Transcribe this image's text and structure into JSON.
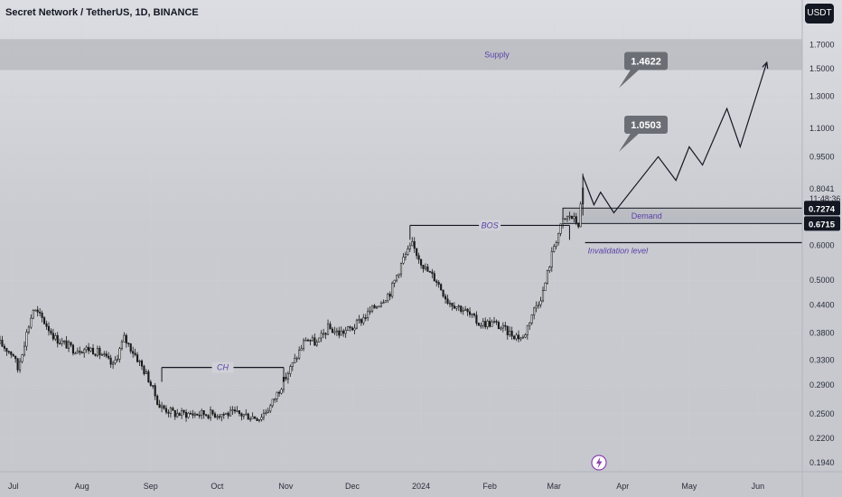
{
  "header": {
    "title": "Secret Network / TetherUS, 1D, BINANCE",
    "currency_button": "USDT"
  },
  "colors": {
    "candle": "#1a1a1a",
    "zone_fill": "#a9abb1",
    "annotation_text": "#5b3fa8",
    "callout_bg": "#6b6e74",
    "price_label_bg": "#131722",
    "axis_text": "#2a2e39"
  },
  "chart_data": {
    "type": "candlestick",
    "symbol": "Secret Network / TetherUS",
    "interval": "1D",
    "exchange": "BINANCE",
    "y_scale": "log",
    "ylim": [
      0.185,
      1.88
    ],
    "xlim": [
      "2023-06-25",
      "2024-06-21"
    ],
    "y_ticks": [
      "1.7000",
      "1.5000",
      "1.3000",
      "1.1000",
      "0.9500",
      "0.8041",
      "0.7274",
      "0.6715",
      "0.6000",
      "0.5000",
      "0.4400",
      "0.3800",
      "0.3300",
      "0.2900",
      "0.2500",
      "0.2200",
      "0.1940"
    ],
    "x_ticks": [
      {
        "label": "Jul",
        "date": "2023-07-01"
      },
      {
        "label": "Aug",
        "date": "2023-08-01"
      },
      {
        "label": "Sep",
        "date": "2023-09-01"
      },
      {
        "label": "Oct",
        "date": "2023-10-01"
      },
      {
        "label": "Nov",
        "date": "2023-11-01"
      },
      {
        "label": "Dec",
        "date": "2023-12-01"
      },
      {
        "label": "2024",
        "date": "2024-01-01"
      },
      {
        "label": "Feb",
        "date": "2024-02-01"
      },
      {
        "label": "Mar",
        "date": "2024-03-01"
      },
      {
        "label": "Apr",
        "date": "2024-04-01"
      },
      {
        "label": "May",
        "date": "2024-05-01"
      },
      {
        "label": "Jun",
        "date": "2024-06-01"
      }
    ],
    "last_price": "0.8041",
    "countdown": "11:48:36",
    "price_path": [
      [
        "2023-06-25",
        0.36
      ],
      [
        "2023-07-01",
        0.34
      ],
      [
        "2023-07-03",
        0.315
      ],
      [
        "2023-07-07",
        0.38
      ],
      [
        "2023-07-10",
        0.43
      ],
      [
        "2023-07-14",
        0.41
      ],
      [
        "2023-07-20",
        0.37
      ],
      [
        "2023-07-28",
        0.35
      ],
      [
        "2023-08-05",
        0.35
      ],
      [
        "2023-08-10",
        0.34
      ],
      [
        "2023-08-15",
        0.32
      ],
      [
        "2023-08-20",
        0.37
      ],
      [
        "2023-08-25",
        0.34
      ],
      [
        "2023-08-31",
        0.3
      ],
      [
        "2023-09-05",
        0.26
      ],
      [
        "2023-09-12",
        0.25
      ],
      [
        "2023-09-22",
        0.25
      ],
      [
        "2023-10-01",
        0.25
      ],
      [
        "2023-10-10",
        0.25
      ],
      [
        "2023-10-20",
        0.245
      ],
      [
        "2023-10-25",
        0.26
      ],
      [
        "2023-10-30",
        0.29
      ],
      [
        "2023-11-05",
        0.33
      ],
      [
        "2023-11-10",
        0.37
      ],
      [
        "2023-11-15",
        0.36
      ],
      [
        "2023-11-20",
        0.39
      ],
      [
        "2023-11-25",
        0.38
      ],
      [
        "2023-12-01",
        0.39
      ],
      [
        "2023-12-10",
        0.43
      ],
      [
        "2023-12-18",
        0.47
      ],
      [
        "2023-12-24",
        0.56
      ],
      [
        "2023-12-28",
        0.6
      ],
      [
        "2024-01-03",
        0.53
      ],
      [
        "2024-01-08",
        0.5
      ],
      [
        "2024-01-13",
        0.45
      ],
      [
        "2024-01-20",
        0.43
      ],
      [
        "2024-01-27",
        0.4
      ],
      [
        "2024-02-03",
        0.4
      ],
      [
        "2024-02-10",
        0.38
      ],
      [
        "2024-02-16",
        0.37
      ],
      [
        "2024-02-20",
        0.42
      ],
      [
        "2024-02-25",
        0.47
      ],
      [
        "2024-03-01",
        0.6
      ],
      [
        "2024-03-05",
        0.68
      ],
      [
        "2024-03-08",
        0.7
      ],
      [
        "2024-03-12",
        0.67
      ],
      [
        "2024-03-14",
        0.8
      ]
    ],
    "projection_path": [
      [
        "2024-03-14",
        0.86
      ],
      [
        "2024-03-19",
        0.74
      ],
      [
        "2024-03-22",
        0.79
      ],
      [
        "2024-03-28",
        0.71
      ],
      [
        "2024-04-17",
        0.95
      ],
      [
        "2024-04-25",
        0.84
      ],
      [
        "2024-05-01",
        1.0
      ],
      [
        "2024-05-07",
        0.91
      ],
      [
        "2024-05-18",
        1.22
      ],
      [
        "2024-05-24",
        1.0
      ],
      [
        "2024-06-05",
        1.55
      ]
    ],
    "zones": [
      {
        "label": "Supply",
        "from": 1.49,
        "to": 1.75,
        "start": "2023-06-25",
        "end": "2024-06-21"
      },
      {
        "label": "Demand",
        "from": 0.6715,
        "to": 0.7274,
        "start": "2024-03-05",
        "end": "2024-06-21"
      }
    ],
    "levels": [
      {
        "label": "CH",
        "value": 0.318,
        "start": "2023-09-06",
        "end": "2023-10-31"
      },
      {
        "label": "BOS",
        "value": 0.665,
        "start": "2023-12-27",
        "end": "2024-03-08"
      },
      {
        "label": "Invalidation level",
        "value": 0.608,
        "start": "2024-03-15",
        "end": "2024-06-21"
      }
    ],
    "callouts": [
      {
        "text": "1.4622",
        "price": 1.4622,
        "date": "2024-03-27"
      },
      {
        "text": "1.0503",
        "price": 1.0503,
        "date": "2024-03-27"
      }
    ],
    "price_labels": [
      "0.7274",
      "0.6715"
    ]
  }
}
